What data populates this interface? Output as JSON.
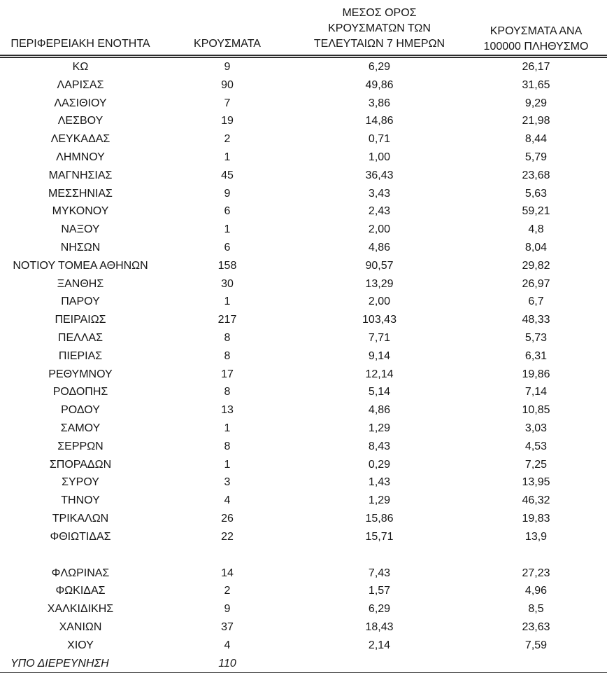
{
  "colors": {
    "background": "#ffffff",
    "text": "#161616",
    "rule": "#2e2e2e"
  },
  "table": {
    "headers": {
      "region": "ΠΕΡΙΦΕΡΕΙΑΚΗ ΕΝΟΤΗΤΑ",
      "cases": "ΚΡΟΥΣΜΑΤΑ",
      "avg7": "ΜΕΣΟΣ ΟΡΟΣ\nΚΡΟΥΣΜΑΤΩΝ ΤΩΝ\nΤΕΛΕΥΤΑΙΩΝ 7 ΗΜΕΡΩΝ",
      "per100k": "ΚΡΟΥΣΜΑΤΑ ΑΝΑ\n100000 ΠΛΗΘΥΣΜΟ"
    },
    "rows": [
      {
        "region": "ΚΩ",
        "cases": "9",
        "avg7": "6,29",
        "per100k": "26,17"
      },
      {
        "region": "ΛΑΡΙΣΑΣ",
        "cases": "90",
        "avg7": "49,86",
        "per100k": "31,65"
      },
      {
        "region": "ΛΑΣΙΘΙΟΥ",
        "cases": "7",
        "avg7": "3,86",
        "per100k": "9,29"
      },
      {
        "region": "ΛΕΣΒΟΥ",
        "cases": "19",
        "avg7": "14,86",
        "per100k": "21,98"
      },
      {
        "region": "ΛΕΥΚΑΔΑΣ",
        "cases": "2",
        "avg7": "0,71",
        "per100k": "8,44"
      },
      {
        "region": "ΛΗΜΝΟΥ",
        "cases": "1",
        "avg7": "1,00",
        "per100k": "5,79"
      },
      {
        "region": "ΜΑΓΝΗΣΙΑΣ",
        "cases": "45",
        "avg7": "36,43",
        "per100k": "23,68"
      },
      {
        "region": "ΜΕΣΣΗΝΙΑΣ",
        "cases": "9",
        "avg7": "3,43",
        "per100k": "5,63"
      },
      {
        "region": "ΜΥΚΟΝΟΥ",
        "cases": "6",
        "avg7": "2,43",
        "per100k": "59,21"
      },
      {
        "region": "ΝΑΞΟΥ",
        "cases": "1",
        "avg7": "2,00",
        "per100k": "4,8"
      },
      {
        "region": "ΝΗΣΩΝ",
        "cases": "6",
        "avg7": "4,86",
        "per100k": "8,04"
      },
      {
        "region": "ΝΟΤΙΟΥ ΤΟΜΕΑ ΑΘΗΝΩΝ",
        "cases": "158",
        "avg7": "90,57",
        "per100k": "29,82"
      },
      {
        "region": "ΞΑΝΘΗΣ",
        "cases": "30",
        "avg7": "13,29",
        "per100k": "26,97"
      },
      {
        "region": "ΠΑΡΟΥ",
        "cases": "1",
        "avg7": "2,00",
        "per100k": "6,7"
      },
      {
        "region": "ΠΕΙΡΑΙΩΣ",
        "cases": "217",
        "avg7": "103,43",
        "per100k": "48,33"
      },
      {
        "region": "ΠΕΛΛΑΣ",
        "cases": "8",
        "avg7": "7,71",
        "per100k": "5,73"
      },
      {
        "region": "ΠΙΕΡΙΑΣ",
        "cases": "8",
        "avg7": "9,14",
        "per100k": "6,31"
      },
      {
        "region": "ΡΕΘΥΜΝΟΥ",
        "cases": "17",
        "avg7": "12,14",
        "per100k": "19,86"
      },
      {
        "region": "ΡΟΔΟΠΗΣ",
        "cases": "8",
        "avg7": "5,14",
        "per100k": "7,14"
      },
      {
        "region": "ΡΟΔΟΥ",
        "cases": "13",
        "avg7": "4,86",
        "per100k": "10,85"
      },
      {
        "region": "ΣΑΜΟΥ",
        "cases": "1",
        "avg7": "1,29",
        "per100k": "3,03"
      },
      {
        "region": "ΣΕΡΡΩΝ",
        "cases": "8",
        "avg7": "8,43",
        "per100k": "4,53"
      },
      {
        "region": "ΣΠΟΡΑΔΩΝ",
        "cases": "1",
        "avg7": "0,29",
        "per100k": "7,25"
      },
      {
        "region": "ΣΥΡΟΥ",
        "cases": "3",
        "avg7": "1,43",
        "per100k": "13,95"
      },
      {
        "region": "ΤΗΝΟΥ",
        "cases": "4",
        "avg7": "1,29",
        "per100k": "46,32"
      },
      {
        "region": "ΤΡΙΚΑΛΩΝ",
        "cases": "26",
        "avg7": "15,86",
        "per100k": "19,83"
      },
      {
        "region": "ΦΘΙΩΤΙΔΑΣ",
        "cases": "22",
        "avg7": "15,71",
        "per100k": "13,9"
      },
      {
        "region": "",
        "cases": "",
        "avg7": "",
        "per100k": "",
        "empty": true
      },
      {
        "region": "ΦΛΩΡΙΝΑΣ",
        "cases": "14",
        "avg7": "7,43",
        "per100k": "27,23"
      },
      {
        "region": "ΦΩΚΙΔΑΣ",
        "cases": "2",
        "avg7": "1,57",
        "per100k": "4,96"
      },
      {
        "region": "ΧΑΛΚΙΔΙΚΗΣ",
        "cases": "9",
        "avg7": "6,29",
        "per100k": "8,5"
      },
      {
        "region": "ΧΑΝΙΩΝ",
        "cases": "37",
        "avg7": "18,43",
        "per100k": "23,63"
      },
      {
        "region": "ΧΙΟΥ",
        "cases": "4",
        "avg7": "2,14",
        "per100k": "7,59"
      },
      {
        "region": "ΥΠΟ ΔΙΕΡΕΥΝΗΣΗ",
        "cases": "110",
        "avg7": "",
        "per100k": "",
        "italic": true
      }
    ]
  }
}
